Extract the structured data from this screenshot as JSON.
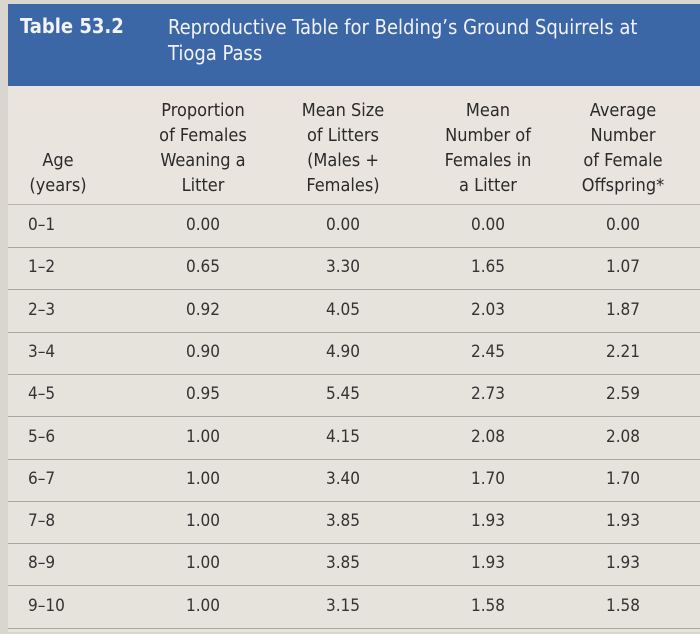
{
  "table": {
    "number": "Table 53.2",
    "title": "Reproductive Table for Belding’s Ground Squirrels at Tioga Pass",
    "columns": [
      [
        "Age",
        "(years)"
      ],
      [
        "Proportion",
        "of Females",
        "Weaning a",
        "Litter"
      ],
      [
        "Mean Size",
        "of Litters",
        "(Males +",
        "Females)"
      ],
      [
        "Mean",
        "Number of",
        "Females in",
        "a Litter"
      ],
      [
        "Average",
        "Number",
        "of Female",
        "Offspring*"
      ]
    ],
    "rows": [
      [
        "0–1",
        "0.00",
        "0.00",
        "0.00",
        "0.00"
      ],
      [
        "1–2",
        "0.65",
        "3.30",
        "1.65",
        "1.07"
      ],
      [
        "2–3",
        "0.92",
        "4.05",
        "2.03",
        "1.87"
      ],
      [
        "3–4",
        "0.90",
        "4.90",
        "2.45",
        "2.21"
      ],
      [
        "4–5",
        "0.95",
        "5.45",
        "2.73",
        "2.59"
      ],
      [
        "5–6",
        "1.00",
        "4.15",
        "2.08",
        "2.08"
      ],
      [
        "6–7",
        "1.00",
        "3.40",
        "1.70",
        "1.70"
      ],
      [
        "7–8",
        "1.00",
        "3.85",
        "1.93",
        "1.93"
      ],
      [
        "8–9",
        "1.00",
        "3.85",
        "1.93",
        "1.93"
      ],
      [
        "9–10",
        "1.00",
        "3.15",
        "1.58",
        "1.58"
      ]
    ]
  },
  "colors": {
    "banner": "#3c67a6",
    "paper": "#e6e2dc"
  }
}
